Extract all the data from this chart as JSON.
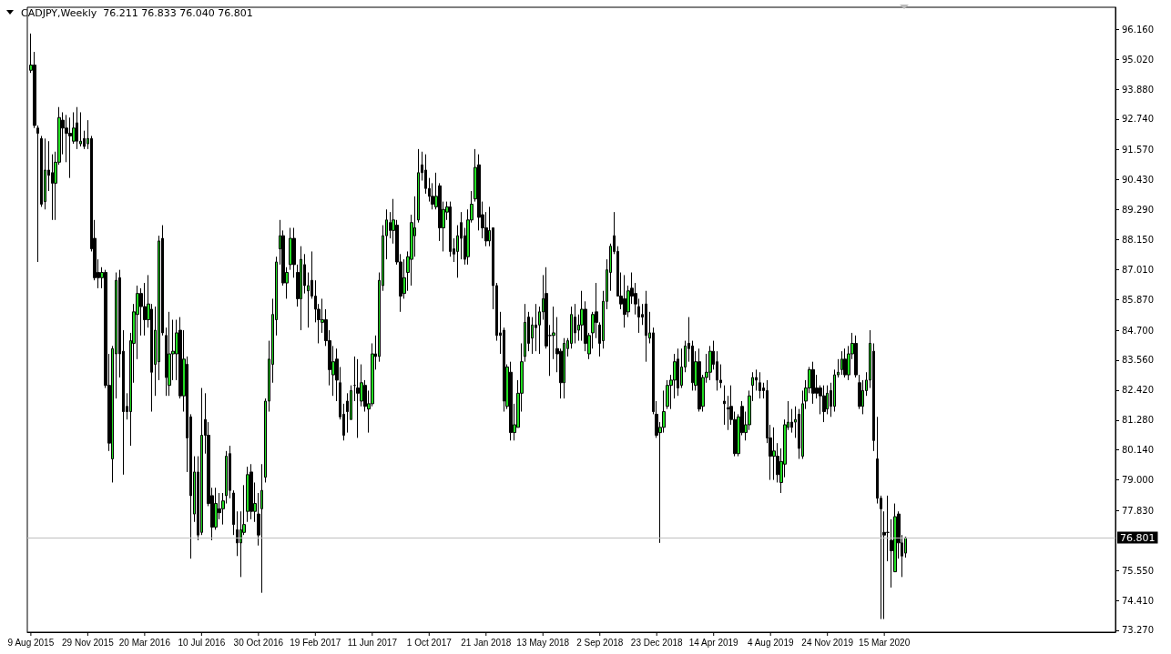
{
  "chart_data": {
    "type": "candlestick",
    "title": "CADJPY,Weekly  76.211 76.833 76.040 76.801",
    "colors": [
      "#22dd22",
      "#000000",
      "#000000",
      "#000000",
      "#22dd22",
      "#000000",
      "#000000",
      "#22dd22",
      "#22dd22",
      "#000000",
      "#000000",
      "#000000",
      "#22dd22",
      "#000000",
      "#22dd22",
      "#000000",
      "#22dd22",
      "#000000",
      "#000000",
      "#000000",
      "#22dd22",
      "#000000",
      "#000000",
      "#22dd22",
      "#22dd22",
      "#000000",
      "#000000",
      "#000000",
      "#22dd22",
      "#22dd22",
      "#22dd22",
      "#000000",
      "#000000",
      "#22dd22",
      "#000000",
      "#22dd22",
      "#22dd22",
      "#000000",
      "#000000",
      "#22dd22",
      "#22dd22",
      "#22dd22",
      "#000000",
      "#22dd22",
      "#000000",
      "#000000",
      "#22dd22",
      "#000000",
      "#22dd22",
      "#000000",
      "#000000",
      "#000000",
      "#22dd22",
      "#000000",
      "#22dd22",
      "#22dd22",
      "#000000",
      "#000000",
      "#000000",
      "#22dd22",
      "#22dd22",
      "#22dd22",
      "#000000",
      "#22dd22",
      "#000000",
      "#22dd22",
      "#22dd22",
      "#22dd22",
      "#22dd22",
      "#22dd22",
      "#22dd22",
      "#000000",
      "#22dd22",
      "#22dd22",
      "#000000",
      "#000000",
      "#22dd22",
      "#000000",
      "#22dd22",
      "#000000",
      "#000000",
      "#000000",
      "#22dd22",
      "#000000",
      "#000000",
      "#22dd22",
      "#000000",
      "#000000",
      "#000000",
      "#000000",
      "#22dd22",
      "#000000",
      "#000000",
      "#22dd22",
      "#000000",
      "#22dd22",
      "#22dd22",
      "#000000",
      "#22dd22",
      "#22dd22",
      "#22dd22",
      "#000000",
      "#22dd22",
      "#000000",
      "#000000",
      "#22dd22",
      "#22dd22",
      "#22dd22",
      "#22dd22",
      "#22dd22",
      "#000000",
      "#000000",
      "#000000",
      "#000000",
      "#22dd22",
      "#000000",
      "#22dd22",
      "#22dd22",
      "#000000",
      "#000000",
      "#22dd22",
      "#000000",
      "#000000",
      "#22dd22",
      "#22dd22",
      "#22dd22",
      "#000000",
      "#000000",
      "#000000",
      "#22dd22",
      "#000000",
      "#000000",
      "#000000",
      "#000000",
      "#22dd22",
      "#000000",
      "#22dd22",
      "#22dd22",
      "#22dd22",
      "#22dd22",
      "#000000",
      "#22dd22",
      "#000000",
      "#22dd22",
      "#22dd22",
      "#000000",
      "#000000",
      "#22dd22",
      "#000000",
      "#000000",
      "#22dd22",
      "#22dd22",
      "#22dd22",
      "#000000",
      "#22dd22",
      "#22dd22",
      "#000000",
      "#22dd22",
      "#22dd22",
      "#000000",
      "#000000",
      "#22dd22",
      "#22dd22",
      "#22dd22",
      "#000000",
      "#000000",
      "#000000",
      "#000000",
      "#22dd22",
      "#000000",
      "#000000",
      "#000000",
      "#000000",
      "#000000",
      "#22dd22",
      "#000000",
      "#000000",
      "#22dd22",
      "#22dd22",
      "#22dd22",
      "#22dd22",
      "#22dd22",
      "#000000",
      "#22dd22",
      "#22dd22",
      "#000000",
      "#000000",
      "#22dd22",
      "#000000",
      "#22dd22",
      "#22dd22",
      "#22dd22",
      "#000000",
      "#000000",
      "#000000",
      "#000000",
      "#000000",
      "#000000",
      "#000000",
      "#22dd22",
      "#000000",
      "#22dd22",
      "#22dd22",
      "#22dd22",
      "#000000",
      "#000000",
      "#000000",
      "#000000",
      "#000000",
      "#22dd22",
      "#000000",
      "#22dd22",
      "#22dd22",
      "#22dd22",
      "#000000",
      "#22dd22",
      "#000000",
      "#22dd22",
      "#22dd22",
      "#22dd22",
      "#000000",
      "#000000",
      "#000000",
      "#000000",
      "#22dd22",
      "#000000",
      "#22dd22",
      "#22dd22",
      "#22dd22",
      "#000000",
      "#22dd22",
      "#22dd22",
      "#000000",
      "#000000",
      "#22dd22",
      "#22dd22",
      "#22dd22",
      "#000000",
      "#000000",
      "#000000",
      "#000000",
      "#000000",
      "#000000",
      "#22dd22",
      "#000000",
      "#000000",
      "#22dd22"
    ],
    "x": [
      "2015-08-09",
      "2015-08-16",
      "2015-08-23",
      "2015-08-30",
      "2015-09-06",
      "2015-09-13",
      "2015-09-20",
      "2015-09-27",
      "2015-10-04",
      "2015-10-11",
      "2015-10-18",
      "2015-10-25",
      "2015-11-01",
      "2015-11-08",
      "2015-11-15",
      "2015-11-22",
      "2015-11-29",
      "2015-12-06",
      "2015-12-13",
      "2015-12-20",
      "2015-12-27",
      "2016-01-03",
      "2016-01-10",
      "2016-01-17",
      "2016-01-24",
      "2016-01-31",
      "2016-02-07",
      "2016-02-14",
      "2016-02-21",
      "2016-02-28",
      "2016-03-06",
      "2016-03-13",
      "2016-03-20",
      "2016-03-27",
      "2016-04-03",
      "2016-04-10",
      "2016-04-17",
      "2016-04-24",
      "2016-05-01",
      "2016-05-08",
      "2016-05-15",
      "2016-05-22",
      "2016-05-29",
      "2016-06-05",
      "2016-06-12",
      "2016-06-19",
      "2016-06-26",
      "2016-07-03",
      "2016-07-10",
      "2016-07-17",
      "2016-07-24",
      "2016-07-31",
      "2016-08-07",
      "2016-08-14",
      "2016-08-21",
      "2016-08-28",
      "2016-09-04",
      "2016-09-11",
      "2016-09-18",
      "2016-09-25",
      "2016-10-02",
      "2016-10-09",
      "2016-10-16",
      "2016-10-23",
      "2016-10-30",
      "2016-11-06",
      "2016-11-13",
      "2016-11-20",
      "2016-11-27",
      "2016-12-04",
      "2016-12-11",
      "2016-12-18",
      "2016-12-25",
      "2017-01-01",
      "2017-01-08",
      "2017-01-15",
      "2017-01-22",
      "2017-01-29",
      "2017-02-05",
      "2017-02-12",
      "2017-02-19",
      "2017-02-26",
      "2017-03-05",
      "2017-03-12",
      "2017-03-19",
      "2017-03-26",
      "2017-04-02",
      "2017-04-09",
      "2017-04-16",
      "2017-04-23",
      "2017-04-30",
      "2017-05-07",
      "2017-05-14",
      "2017-05-21",
      "2017-05-28",
      "2017-06-04",
      "2017-06-11",
      "2017-06-18",
      "2017-06-25",
      "2017-07-02",
      "2017-07-09",
      "2017-07-16",
      "2017-07-23",
      "2017-07-30",
      "2017-08-06",
      "2017-08-13",
      "2017-08-20",
      "2017-08-27",
      "2017-09-03",
      "2017-09-10",
      "2017-09-17",
      "2017-09-24",
      "2017-10-01",
      "2017-10-08",
      "2017-10-15",
      "2017-10-22",
      "2017-10-29",
      "2017-11-05",
      "2017-11-12",
      "2017-11-19",
      "2017-11-26",
      "2017-12-03",
      "2017-12-10",
      "2017-12-17",
      "2017-12-24",
      "2017-12-31",
      "2018-01-07",
      "2018-01-14",
      "2018-01-21",
      "2018-01-28",
      "2018-02-04",
      "2018-02-11",
      "2018-02-18",
      "2018-02-25",
      "2018-03-04",
      "2018-03-11",
      "2018-03-18",
      "2018-03-25",
      "2018-04-01",
      "2018-04-08",
      "2018-04-15",
      "2018-04-22",
      "2018-04-29",
      "2018-05-06",
      "2018-05-13",
      "2018-05-20",
      "2018-05-27",
      "2018-06-03",
      "2018-06-10",
      "2018-06-17",
      "2018-06-24",
      "2018-07-01",
      "2018-07-08",
      "2018-07-15",
      "2018-07-22",
      "2018-07-29",
      "2018-08-05",
      "2018-08-12",
      "2018-08-19",
      "2018-08-26",
      "2018-09-02",
      "2018-09-09",
      "2018-09-16",
      "2018-09-23",
      "2018-09-30",
      "2018-10-07",
      "2018-10-14",
      "2018-10-21",
      "2018-10-28",
      "2018-11-04",
      "2018-11-11",
      "2018-11-18",
      "2018-11-25",
      "2018-12-02",
      "2018-12-09",
      "2018-12-16",
      "2018-12-23",
      "2018-12-30",
      "2019-01-06",
      "2019-01-13",
      "2019-01-20",
      "2019-01-27",
      "2019-02-03",
      "2019-02-10",
      "2019-02-17",
      "2019-02-24",
      "2019-03-03",
      "2019-03-10",
      "2019-03-17",
      "2019-03-24",
      "2019-03-31",
      "2019-04-07",
      "2019-04-14",
      "2019-04-21",
      "2019-04-28",
      "2019-05-05",
      "2019-05-12",
      "2019-05-19",
      "2019-05-26",
      "2019-06-02",
      "2019-06-09",
      "2019-06-16",
      "2019-06-23",
      "2019-06-30",
      "2019-07-07",
      "2019-07-14",
      "2019-07-21",
      "2019-07-28",
      "2019-08-04",
      "2019-08-11",
      "2019-08-18",
      "2019-08-25",
      "2019-09-01",
      "2019-09-08",
      "2019-09-15",
      "2019-09-22",
      "2019-09-29",
      "2019-10-06",
      "2019-10-13",
      "2019-10-20",
      "2019-10-27",
      "2019-11-03",
      "2019-11-10",
      "2019-11-17",
      "2019-11-24",
      "2019-12-01",
      "2019-12-08",
      "2019-12-15",
      "2019-12-22",
      "2019-12-29",
      "2020-01-05",
      "2020-01-12",
      "2020-01-19",
      "2020-01-26",
      "2020-02-02",
      "2020-02-09",
      "2020-02-16",
      "2020-02-23",
      "2020-03-01",
      "2020-03-08",
      "2020-03-15",
      "2020-03-22",
      "2020-03-29",
      "2020-04-05",
      "2020-04-12",
      "2020-04-19",
      "2020-04-26"
    ],
    "ohlc": [
      [
        94.6,
        96.0,
        94.5,
        94.8
      ],
      [
        94.8,
        95.3,
        92.4,
        92.5
      ],
      [
        92.4,
        92.5,
        87.3,
        92.2
      ],
      [
        92.0,
        92.1,
        89.4,
        89.5
      ],
      [
        89.6,
        92.0,
        89.3,
        90.8
      ],
      [
        90.8,
        91.9,
        90.0,
        90.6
      ],
      [
        90.7,
        91.4,
        88.9,
        90.3
      ],
      [
        90.3,
        91.5,
        88.9,
        91.1
      ],
      [
        91.1,
        93.2,
        91.0,
        92.8
      ],
      [
        92.7,
        93.0,
        91.4,
        92.4
      ],
      [
        92.4,
        92.9,
        91.1,
        92.2
      ],
      [
        92.2,
        92.8,
        90.5,
        92.1
      ],
      [
        91.9,
        93.0,
        91.8,
        92.4
      ],
      [
        92.6,
        93.2,
        91.6,
        91.9
      ],
      [
        91.8,
        93.0,
        91.7,
        91.9
      ],
      [
        92.0,
        92.3,
        91.6,
        91.7
      ],
      [
        91.8,
        92.7,
        91.6,
        92.0
      ],
      [
        92.0,
        92.1,
        87.7,
        87.8
      ],
      [
        88.2,
        88.9,
        86.6,
        86.7
      ],
      [
        86.9,
        87.4,
        86.3,
        86.7
      ],
      [
        86.7,
        87.1,
        86.3,
        86.9
      ],
      [
        86.9,
        87.0,
        82.5,
        82.6
      ],
      [
        82.6,
        83.8,
        80.1,
        80.4
      ],
      [
        79.8,
        84.1,
        78.9,
        84.0
      ],
      [
        83.8,
        86.9,
        82.1,
        86.6
      ],
      [
        86.7,
        87.0,
        82.9,
        83.8
      ],
      [
        83.9,
        84.7,
        79.2,
        81.6
      ],
      [
        81.8,
        82.3,
        81.3,
        81.6
      ],
      [
        81.6,
        84.6,
        80.3,
        84.3
      ],
      [
        84.2,
        85.7,
        82.7,
        85.4
      ],
      [
        85.3,
        86.4,
        83.6,
        86.1
      ],
      [
        86.1,
        86.3,
        84.5,
        85.6
      ],
      [
        85.6,
        86.5,
        84.5,
        85.1
      ],
      [
        85.1,
        86.8,
        84.8,
        85.7
      ],
      [
        85.5,
        85.7,
        81.6,
        83.1
      ],
      [
        83.4,
        85.6,
        82.2,
        84.7
      ],
      [
        83.5,
        88.3,
        82.8,
        88.1
      ],
      [
        88.2,
        88.7,
        84.5,
        84.6
      ],
      [
        84.5,
        84.8,
        82.2,
        82.9
      ],
      [
        82.6,
        85.4,
        82.2,
        83.8
      ],
      [
        83.8,
        85.1,
        82.8,
        83.9
      ],
      [
        83.8,
        85.1,
        82.8,
        84.6
      ],
      [
        84.7,
        85.2,
        82.1,
        82.2
      ],
      [
        82.2,
        84.7,
        81.6,
        83.6
      ],
      [
        83.4,
        83.7,
        79.3,
        80.6
      ],
      [
        81.4,
        81.5,
        76.0,
        78.4
      ],
      [
        77.7,
        79.9,
        77.4,
        79.3
      ],
      [
        79.3,
        79.9,
        76.7,
        76.9
      ],
      [
        77.0,
        82.5,
        76.9,
        80.7
      ],
      [
        81.3,
        82.3,
        80.0,
        80.7
      ],
      [
        80.7,
        81.2,
        78.0,
        78.1
      ],
      [
        78.4,
        78.7,
        76.7,
        77.2
      ],
      [
        77.2,
        78.7,
        77.1,
        78.1
      ],
      [
        77.9,
        78.5,
        77.5,
        77.75
      ],
      [
        77.9,
        78.5,
        77.3,
        78.2
      ],
      [
        78.4,
        80.1,
        78.1,
        79.9
      ],
      [
        80.0,
        80.3,
        78.3,
        78.6
      ],
      [
        78.5,
        78.6,
        76.9,
        77.3
      ],
      [
        77.1,
        77.8,
        76.1,
        76.6
      ],
      [
        76.6,
        77.8,
        75.3,
        77.1
      ],
      [
        77.0,
        78.8,
        76.9,
        77.3
      ],
      [
        77.8,
        79.5,
        77.4,
        79.2
      ],
      [
        79.3,
        79.6,
        77.5,
        77.8
      ],
      [
        77.8,
        78.9,
        77.4,
        78.1
      ],
      [
        77.7,
        78.5,
        76.5,
        76.9
      ],
      [
        77.9,
        79.6,
        74.7,
        78.6
      ],
      [
        79.1,
        82.1,
        78.9,
        82.0
      ],
      [
        82.0,
        84.3,
        81.6,
        83.6
      ],
      [
        83.4,
        85.9,
        82.7,
        85.3
      ],
      [
        85.1,
        87.5,
        84.5,
        87.3
      ],
      [
        87.8,
        88.9,
        87.2,
        88.3
      ],
      [
        88.3,
        88.5,
        86.4,
        86.5
      ],
      [
        86.5,
        87.1,
        85.9,
        86.9
      ],
      [
        87.2,
        88.6,
        87.0,
        88.2
      ],
      [
        88.2,
        88.6,
        86.7,
        87.2
      ],
      [
        86.9,
        87.2,
        85.6,
        85.9
      ],
      [
        85.9,
        87.9,
        84.7,
        87.4
      ],
      [
        87.2,
        87.6,
        86.1,
        86.4
      ],
      [
        86.2,
        86.9,
        84.8,
        86.4
      ],
      [
        86.6,
        87.7,
        85.9,
        86.0
      ],
      [
        86.0,
        86.6,
        85.0,
        85.5
      ],
      [
        85.5,
        85.7,
        84.2,
        85.1
      ],
      [
        85.0,
        85.9,
        84.6,
        85.1
      ],
      [
        85.1,
        85.5,
        84.1,
        84.3
      ],
      [
        84.3,
        84.7,
        82.6,
        83.2
      ],
      [
        83.0,
        84.1,
        82.2,
        83.5
      ],
      [
        83.6,
        84.0,
        82.0,
        82.8
      ],
      [
        82.7,
        83.3,
        81.3,
        81.4
      ],
      [
        81.5,
        81.9,
        80.5,
        80.7
      ],
      [
        82.0,
        82.3,
        80.8,
        81.6
      ],
      [
        81.3,
        82.6,
        81.3,
        82.4
      ],
      [
        82.6,
        83.7,
        82.0,
        82.6
      ],
      [
        82.5,
        83.6,
        80.6,
        82.3
      ],
      [
        82.0,
        83.4,
        81.8,
        82.7
      ],
      [
        82.6,
        82.8,
        81.6,
        81.8
      ],
      [
        81.7,
        82.4,
        80.8,
        81.9
      ],
      [
        81.9,
        84.2,
        81.8,
        83.8
      ],
      [
        83.8,
        84.5,
        83.2,
        83.7
      ],
      [
        83.7,
        86.9,
        83.5,
        86.6
      ],
      [
        86.4,
        88.7,
        86.2,
        88.3
      ],
      [
        88.3,
        89.3,
        87.4,
        88.9
      ],
      [
        88.8,
        89.2,
        88.2,
        88.5
      ],
      [
        88.5,
        89.7,
        88.0,
        88.9
      ],
      [
        88.7,
        88.9,
        87.2,
        87.3
      ],
      [
        87.3,
        87.6,
        85.4,
        86.0
      ],
      [
        86.1,
        87.4,
        85.9,
        86.7
      ],
      [
        86.9,
        87.7,
        86.2,
        87.5
      ],
      [
        87.4,
        89.1,
        86.4,
        88.8
      ],
      [
        88.3,
        89.8,
        87.5,
        88.6
      ],
      [
        88.9,
        91.6,
        88.8,
        90.7
      ],
      [
        91.0,
        91.5,
        90.4,
        90.7
      ],
      [
        90.8,
        91.4,
        89.9,
        90.1
      ],
      [
        90.1,
        90.5,
        89.6,
        89.8
      ],
      [
        89.8,
        90.3,
        89.3,
        89.5
      ],
      [
        89.4,
        90.7,
        89.3,
        89.8
      ],
      [
        90.2,
        90.3,
        88.1,
        88.6
      ],
      [
        88.6,
        89.6,
        87.7,
        89.3
      ],
      [
        89.2,
        89.6,
        88.9,
        89.4
      ],
      [
        89.4,
        89.6,
        87.5,
        87.7
      ],
      [
        87.8,
        88.2,
        87.3,
        87.6
      ],
      [
        87.7,
        88.7,
        86.7,
        88.3
      ],
      [
        88.8,
        89.2,
        87.4,
        88.2
      ],
      [
        88.3,
        88.6,
        87.2,
        87.4
      ],
      [
        87.5,
        89.3,
        87.2,
        88.9
      ],
      [
        88.9,
        90.0,
        88.8,
        89.5
      ],
      [
        89.7,
        91.6,
        89.6,
        90.9
      ],
      [
        91.0,
        91.4,
        88.5,
        89.0
      ],
      [
        89.1,
        89.6,
        88.2,
        88.6
      ],
      [
        88.6,
        89.2,
        87.9,
        88.1
      ],
      [
        88.1,
        89.4,
        87.9,
        88.5
      ],
      [
        88.6,
        88.6,
        85.5,
        86.4
      ],
      [
        86.4,
        86.5,
        84.3,
        84.5
      ],
      [
        84.6,
        85.4,
        83.8,
        84.5
      ],
      [
        84.7,
        84.8,
        81.6,
        82.0
      ],
      [
        81.8,
        83.4,
        81.7,
        83.3
      ],
      [
        83.1,
        83.5,
        80.5,
        80.8
      ],
      [
        80.8,
        81.9,
        80.5,
        81.1
      ],
      [
        81.0,
        82.8,
        81.0,
        82.3
      ],
      [
        82.3,
        84.2,
        81.6,
        83.5
      ],
      [
        83.7,
        85.7,
        83.5,
        85.0
      ],
      [
        85.2,
        85.4,
        83.9,
        84.2
      ],
      [
        84.4,
        85.2,
        83.8,
        84.9
      ],
      [
        84.9,
        85.7,
        83.9,
        84.8
      ],
      [
        84.9,
        85.6,
        83.8,
        85.4
      ],
      [
        85.4,
        86.8,
        85.1,
        85.9
      ],
      [
        86.1,
        87.1,
        84.0,
        84.1
      ],
      [
        84.5,
        84.9,
        82.96,
        84.5
      ],
      [
        84.5,
        85.6,
        83.6,
        84.6
      ],
      [
        84.0,
        85.2,
        83.1,
        83.8
      ],
      [
        83.9,
        84.0,
        82.1,
        82.7
      ],
      [
        82.7,
        84.4,
        82.1,
        84.2
      ],
      [
        84.0,
        84.4,
        83.7,
        84.3
      ],
      [
        84.2,
        85.6,
        84.0,
        85.3
      ],
      [
        85.2,
        85.7,
        84.2,
        84.6
      ],
      [
        84.7,
        85.3,
        84.3,
        84.9
      ],
      [
        84.9,
        86.2,
        84.3,
        85.5
      ],
      [
        85.5,
        85.8,
        83.9,
        84.2
      ],
      [
        83.8,
        84.6,
        83.6,
        84.5
      ],
      [
        84.6,
        85.4,
        84.0,
        85.3
      ],
      [
        85.4,
        86.5,
        84.4,
        85.0
      ],
      [
        84.9,
        85.0,
        83.7,
        84.2
      ],
      [
        84.3,
        86.2,
        84.0,
        85.8
      ],
      [
        85.8,
        87.4,
        85.5,
        87.0
      ],
      [
        86.9,
        88.0,
        86.2,
        87.9
      ],
      [
        88.3,
        89.2,
        87.6,
        87.7
      ],
      [
        87.7,
        87.9,
        86.0,
        86.0
      ],
      [
        86.0,
        86.9,
        85.5,
        85.7
      ],
      [
        85.9,
        86.8,
        84.8,
        85.3
      ],
      [
        85.4,
        86.4,
        85.2,
        86.2
      ],
      [
        86.3,
        86.9,
        85.7,
        86.0
      ],
      [
        86.1,
        86.5,
        85.3,
        85.7
      ],
      [
        85.6,
        85.9,
        84.6,
        85.2
      ],
      [
        85.3,
        85.7,
        84.9,
        85.2
      ],
      [
        85.7,
        86.2,
        83.5,
        84.5
      ],
      [
        84.4,
        85.4,
        84.2,
        84.6
      ],
      [
        84.6,
        84.8,
        81.5,
        81.6
      ],
      [
        81.5,
        82.0,
        80.6,
        80.7
      ],
      [
        80.8,
        81.2,
        76.6,
        81.0
      ],
      [
        81.0,
        82.4,
        80.8,
        81.6
      ],
      [
        81.8,
        82.8,
        81.7,
        82.6
      ],
      [
        82.6,
        83.0,
        81.7,
        82.8
      ],
      [
        82.8,
        83.8,
        82.1,
        83.5
      ],
      [
        83.6,
        84.0,
        82.2,
        82.5
      ],
      [
        82.6,
        84.0,
        82.5,
        83.3
      ],
      [
        83.3,
        84.3,
        83.1,
        84.1
      ],
      [
        84.2,
        85.2,
        83.5,
        84.0
      ],
      [
        84.1,
        84.3,
        82.4,
        82.7
      ],
      [
        82.6,
        83.9,
        82.4,
        83.5
      ],
      [
        83.5,
        84.0,
        81.6,
        81.7
      ],
      [
        81.8,
        83.0,
        81.6,
        82.9
      ],
      [
        82.9,
        83.8,
        82.7,
        83.1
      ],
      [
        83.1,
        84.1,
        82.8,
        83.9
      ],
      [
        83.9,
        84.3,
        83.2,
        83.4
      ],
      [
        83.5,
        83.9,
        82.4,
        82.8
      ],
      [
        82.8,
        83.4,
        82.5,
        82.7
      ],
      [
        82.0,
        82.6,
        81.1,
        81.9
      ],
      [
        81.75,
        82.2,
        80.9,
        81.7
      ],
      [
        81.8,
        82.6,
        81.1,
        81.3
      ],
      [
        81.3,
        81.6,
        79.9,
        80.0
      ],
      [
        80.0,
        81.5,
        79.9,
        81.4
      ],
      [
        81.8,
        82.0,
        80.7,
        80.8
      ],
      [
        80.8,
        81.6,
        80.5,
        81.1
      ],
      [
        81.1,
        82.4,
        80.9,
        82.2
      ],
      [
        82.6,
        83.1,
        82.0,
        82.9
      ],
      [
        82.9,
        83.2,
        82.4,
        82.8
      ],
      [
        82.7,
        83.1,
        82.1,
        82.4
      ],
      [
        82.5,
        82.7,
        82.1,
        82.4
      ],
      [
        82.4,
        82.8,
        80.4,
        80.6
      ],
      [
        80.6,
        81.1,
        79.0,
        79.9
      ],
      [
        79.9,
        81.0,
        79.0,
        80.1
      ],
      [
        79.9,
        80.4,
        78.9,
        79.2
      ],
      [
        78.9,
        80.2,
        78.5,
        79.7
      ],
      [
        79.6,
        81.3,
        79.1,
        81.1
      ],
      [
        81.0,
        82.0,
        80.9,
        81.2
      ],
      [
        81.2,
        81.7,
        80.8,
        81.0
      ],
      [
        81.2,
        81.8,
        80.6,
        81.3
      ],
      [
        81.5,
        81.7,
        79.8,
        80.2
      ],
      [
        79.9,
        82.4,
        79.8,
        81.9
      ],
      [
        82.0,
        82.8,
        81.7,
        82.5
      ],
      [
        82.5,
        83.3,
        82.3,
        83.2
      ],
      [
        83.2,
        83.5,
        81.9,
        82.3
      ],
      [
        82.5,
        83.0,
        82.1,
        82.3
      ],
      [
        82.5,
        82.6,
        81.5,
        82.2
      ],
      [
        82.2,
        82.6,
        81.2,
        81.6
      ],
      [
        81.7,
        82.6,
        81.5,
        82.3
      ],
      [
        82.4,
        82.7,
        81.4,
        81.8
      ],
      [
        81.8,
        83.2,
        81.6,
        83.0
      ],
      [
        83.0,
        83.6,
        82.9,
        83.1
      ],
      [
        83.2,
        83.9,
        83.0,
        83.6
      ],
      [
        83.6,
        84.0,
        82.9,
        83.0
      ],
      [
        83.0,
        84.1,
        82.8,
        83.8
      ],
      [
        83.8,
        84.6,
        83.6,
        84.2
      ],
      [
        84.2,
        84.5,
        82.9,
        83.0
      ],
      [
        82.7,
        83.0,
        81.7,
        81.8
      ],
      [
        81.8,
        82.8,
        81.5,
        82.4
      ],
      [
        82.4,
        83.1,
        82.2,
        82.8
      ],
      [
        82.8,
        84.7,
        82.5,
        84.2
      ],
      [
        83.9,
        84.2,
        80.1,
        80.5
      ],
      [
        79.8,
        81.4,
        78.1,
        78.3
      ],
      [
        78.3,
        78.4,
        73.7,
        77.9
      ],
      [
        77.0,
        77.8,
        73.7,
        76.9
      ],
      [
        77.0,
        78.4,
        75.9,
        77.0
      ],
      [
        76.7,
        77.5,
        74.9,
        76.3
      ],
      [
        75.5,
        78.1,
        75.5,
        77.6
      ],
      [
        77.7,
        77.8,
        76.0,
        76.6
      ],
      [
        76.6,
        76.9,
        75.3,
        76.1
      ],
      [
        76.211,
        76.833,
        76.04,
        76.801
      ]
    ],
    "xlim": [
      "2015-08-02",
      "2021-06-13"
    ],
    "xticks": [
      {
        "value": "2015-08-09",
        "label": "9 Aug 2015"
      },
      {
        "value": "2015-11-29",
        "label": "29 Nov 2015"
      },
      {
        "value": "2016-03-20",
        "label": "20 Mar 2016"
      },
      {
        "value": "2016-07-10",
        "label": "10 Jul 2016"
      },
      {
        "value": "2016-10-30",
        "label": "30 Oct 2016"
      },
      {
        "value": "2017-02-19",
        "label": "19 Feb 2017"
      },
      {
        "value": "2017-06-11",
        "label": "11 Jun 2017"
      },
      {
        "value": "2017-10-01",
        "label": "1 Oct 2017"
      },
      {
        "value": "2018-01-21",
        "label": "21 Jan 2018"
      },
      {
        "value": "2018-05-13",
        "label": "13 May 2018"
      },
      {
        "value": "2018-09-02",
        "label": "2 Sep 2018"
      },
      {
        "value": "2018-12-23",
        "label": "23 Dec 2018"
      },
      {
        "value": "2019-04-14",
        "label": "14 Apr 2019"
      },
      {
        "value": "2019-08-04",
        "label": "4 Aug 2019"
      },
      {
        "value": "2019-11-24",
        "label": "24 Nov 2019"
      },
      {
        "value": "2020-03-15",
        "label": "15 Mar 2020"
      }
    ],
    "ylim": [
      73.2,
      97.0
    ],
    "yticks": [
      {
        "value": 96.16,
        "label": "96.160"
      },
      {
        "value": 95.02,
        "label": "95.020"
      },
      {
        "value": 93.88,
        "label": "93.880"
      },
      {
        "value": 92.74,
        "label": "92.740"
      },
      {
        "value": 91.57,
        "label": "91.570"
      },
      {
        "value": 90.43,
        "label": "90.430"
      },
      {
        "value": 89.29,
        "label": "89.290"
      },
      {
        "value": 88.15,
        "label": "88.150"
      },
      {
        "value": 87.01,
        "label": "87.010"
      },
      {
        "value": 85.87,
        "label": "85.870"
      },
      {
        "value": 84.7,
        "label": "84.700"
      },
      {
        "value": 83.56,
        "label": "83.560"
      },
      {
        "value": 82.42,
        "label": "82.420"
      },
      {
        "value": 81.28,
        "label": "81.280"
      },
      {
        "value": 80.14,
        "label": "80.140"
      },
      {
        "value": 79.0,
        "label": "79.000"
      },
      {
        "value": 77.83,
        "label": "77.830"
      },
      {
        "value": 75.55,
        "label": "75.550"
      },
      {
        "value": 74.41,
        "label": "74.410"
      },
      {
        "value": 73.27,
        "label": "73.270"
      }
    ],
    "ref_lines": [
      {
        "axis": "y",
        "value": 76.801,
        "label": "76.801",
        "color": "#c0c0c0"
      }
    ],
    "grid": false
  }
}
